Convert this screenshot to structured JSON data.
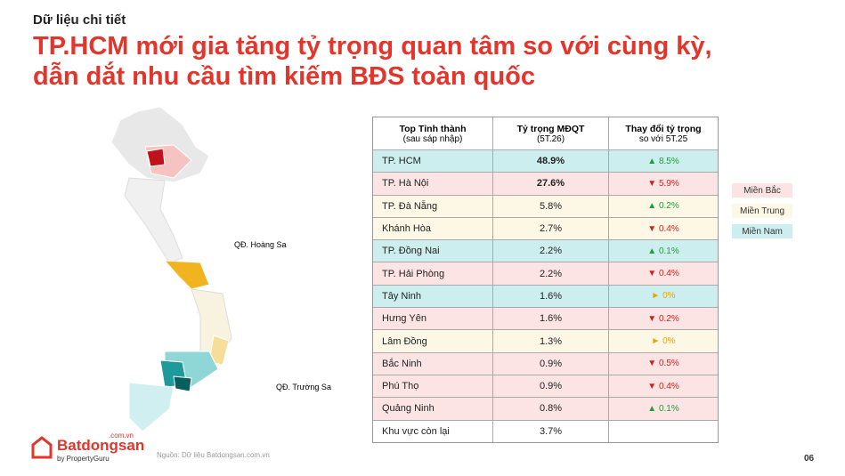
{
  "header": {
    "kicker": "Dữ liệu chi tiết",
    "title_lines": [
      "TP.HCM mới gia tăng tỷ trọng quan tâm so với cùng kỳ,",
      "dẫn dắt nhu cầu tìm kiếm BĐS toàn quốc"
    ]
  },
  "map": {
    "labels": [
      "QĐ. Hoàng Sa",
      "QĐ. Trường Sa"
    ]
  },
  "table": {
    "headers": [
      [
        "Top Tỉnh thành",
        "(sau sáp nhập)"
      ],
      [
        "Tỷ trọng MĐQT",
        "(5T.26)"
      ],
      [
        "Thay đổi tỷ trọng",
        "so với 5T.25"
      ]
    ],
    "rows": [
      {
        "name": "TP. HCM",
        "share": "48.9%",
        "change": "▲ 8.5%",
        "color": "#cdeeee"
      },
      {
        "name": "TP. Hà Nội",
        "share": "27.6%",
        "change": "▼ 5.9%",
        "color": "#fde4e4"
      },
      {
        "name": "TP. Đà Nẵng",
        "share": "5.8%",
        "change": "▲ 0.2%",
        "color": "#fdf8e6"
      },
      {
        "name": "Khánh Hòa",
        "share": "2.7%",
        "change": "▼ 0.4%",
        "color": "#fdf8e6"
      },
      {
        "name": "TP. Đồng Nai",
        "share": "2.2%",
        "change": "▲ 0.1%",
        "color": "#cdeeee"
      },
      {
        "name": "TP. Hải Phòng",
        "share": "2.2%",
        "change": "▼ 0.4%",
        "color": "#fde4e4"
      },
      {
        "name": "Tây Ninh",
        "share": "1.6%",
        "change": "► 0%",
        "color": "#cdeeee"
      },
      {
        "name": "Hưng Yên",
        "share": "1.6%",
        "change": "▼ 0.2%",
        "color": "#fde4e4"
      },
      {
        "name": "Lâm Đồng",
        "share": "1.3%",
        "change": "► 0%",
        "color": "#fdf8e6"
      },
      {
        "name": "Bắc Ninh",
        "share": "0.9%",
        "change": "▼ 0.5%",
        "color": "#fde4e4"
      },
      {
        "name": "Phú Thọ",
        "share": "0.9%",
        "change": "▼ 0.4%",
        "color": "#fde4e4"
      },
      {
        "name": "Quảng Ninh",
        "share": "0.8%",
        "change": "▲ 0.1%",
        "color": "#fde4e4"
      },
      {
        "name": "Khu vực còn lại",
        "share": "3.7%",
        "change": null,
        "color": "#ffffff"
      }
    ]
  },
  "legend": [
    {
      "name": "Miền Bắc",
      "color": "#fde4e4"
    },
    {
      "name": "Miền Trung",
      "color": "#fdf8e6"
    },
    {
      "name": "Miền Nam",
      "color": "#cdeeee"
    }
  ],
  "footer": {
    "logo": "Batdongsan",
    "logo_domain": ".com.vn",
    "logo_by": "by PropertyGuru",
    "source": "Nguồn: Dữ liệu Batdongsan.com.vn",
    "page": "06"
  }
}
